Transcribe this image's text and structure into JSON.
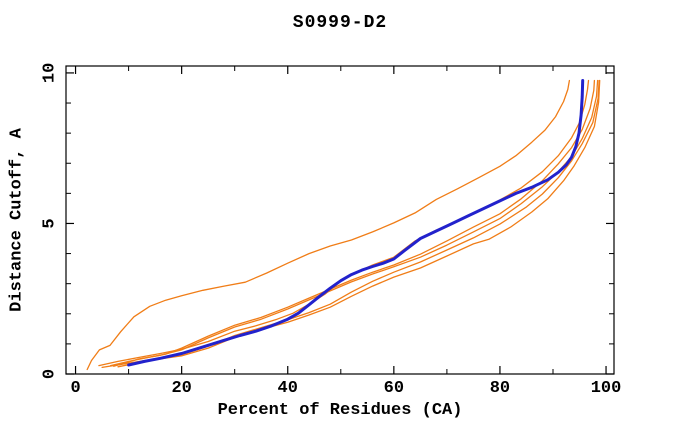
{
  "chart_data": {
    "type": "line",
    "title": "S0999-D2",
    "xlabel": "Percent of Residues (CA)",
    "ylabel": "Distance Cutoff, A",
    "xlim": [
      -1.8,
      101.5
    ],
    "ylim": [
      0,
      10.23
    ],
    "x_major_ticks": [
      0,
      20,
      40,
      60,
      80,
      100
    ],
    "x_minor_ticks": [
      10,
      30,
      50,
      70,
      90
    ],
    "y_major_ticks": [
      0,
      5,
      10
    ],
    "y_minor_ticks": [
      1,
      2,
      3,
      4,
      6,
      7,
      8,
      9
    ],
    "grid": false,
    "legend": "none",
    "colors": {
      "axis": "#000000",
      "background": "#ffffff",
      "orange": "#f07d17",
      "blue": "#2222cc"
    },
    "series": [
      {
        "name": "orange-top",
        "color": "#f07d17",
        "width": 1.3,
        "points": [
          [
            2.2,
            0.15
          ],
          [
            3,
            0.45
          ],
          [
            4.5,
            0.8
          ],
          [
            6.5,
            0.95
          ],
          [
            8.5,
            1.4
          ],
          [
            11,
            1.9
          ],
          [
            14,
            2.25
          ],
          [
            17,
            2.45
          ],
          [
            20,
            2.6
          ],
          [
            24,
            2.78
          ],
          [
            28,
            2.92
          ],
          [
            32,
            3.05
          ],
          [
            36,
            3.35
          ],
          [
            40,
            3.68
          ],
          [
            44,
            4.0
          ],
          [
            48,
            4.25
          ],
          [
            52,
            4.45
          ],
          [
            56,
            4.72
          ],
          [
            60,
            5.02
          ],
          [
            64,
            5.35
          ],
          [
            68,
            5.8
          ],
          [
            72,
            6.15
          ],
          [
            76,
            6.52
          ],
          [
            80,
            6.9
          ],
          [
            83,
            7.25
          ],
          [
            86,
            7.7
          ],
          [
            88.5,
            8.1
          ],
          [
            90.5,
            8.55
          ],
          [
            92,
            9.05
          ],
          [
            92.8,
            9.45
          ],
          [
            93.1,
            9.75
          ]
        ]
      },
      {
        "name": "orange-hug",
        "color": "#f07d17",
        "width": 1.3,
        "points": [
          [
            4.4,
            0.28
          ],
          [
            8,
            0.42
          ],
          [
            12,
            0.55
          ],
          [
            16,
            0.68
          ],
          [
            20,
            0.82
          ],
          [
            25,
            1.08
          ],
          [
            30,
            1.42
          ],
          [
            34,
            1.6
          ],
          [
            38,
            1.82
          ],
          [
            41,
            2.02
          ],
          [
            44,
            2.32
          ],
          [
            47,
            2.65
          ],
          [
            50,
            3.08
          ],
          [
            53,
            3.38
          ],
          [
            56,
            3.62
          ],
          [
            60,
            3.88
          ],
          [
            64,
            4.42
          ],
          [
            68,
            4.78
          ],
          [
            72,
            5.08
          ],
          [
            76,
            5.42
          ],
          [
            80,
            5.78
          ],
          [
            84,
            6.18
          ],
          [
            88,
            6.72
          ],
          [
            91,
            7.25
          ],
          [
            93.5,
            7.85
          ],
          [
            95,
            8.35
          ],
          [
            96,
            8.95
          ],
          [
            96.5,
            9.45
          ],
          [
            96.7,
            9.75
          ]
        ]
      },
      {
        "name": "orange-pair-1",
        "color": "#f07d17",
        "width": 1.3,
        "points": [
          [
            6.6,
            0.28
          ],
          [
            10,
            0.42
          ],
          [
            14,
            0.56
          ],
          [
            17,
            0.66
          ],
          [
            20,
            0.86
          ],
          [
            25,
            1.26
          ],
          [
            30,
            1.62
          ],
          [
            35,
            1.88
          ],
          [
            40,
            2.22
          ],
          [
            44,
            2.52
          ],
          [
            48,
            2.82
          ],
          [
            52,
            3.12
          ],
          [
            56,
            3.38
          ],
          [
            60,
            3.62
          ],
          [
            65,
            3.98
          ],
          [
            70,
            4.42
          ],
          [
            75,
            4.88
          ],
          [
            80,
            5.32
          ],
          [
            84,
            5.82
          ],
          [
            88,
            6.42
          ],
          [
            91,
            6.98
          ],
          [
            93.5,
            7.52
          ],
          [
            95.5,
            8.12
          ],
          [
            97,
            8.82
          ],
          [
            97.7,
            9.42
          ],
          [
            97.8,
            9.75
          ]
        ]
      },
      {
        "name": "orange-pair-2",
        "color": "#f07d17",
        "width": 1.3,
        "points": [
          [
            7.2,
            0.26
          ],
          [
            12,
            0.5
          ],
          [
            16,
            0.62
          ],
          [
            20,
            0.8
          ],
          [
            25,
            1.2
          ],
          [
            30,
            1.56
          ],
          [
            35,
            1.82
          ],
          [
            40,
            2.16
          ],
          [
            44,
            2.46
          ],
          [
            48,
            2.76
          ],
          [
            52,
            3.06
          ],
          [
            56,
            3.32
          ],
          [
            60,
            3.56
          ],
          [
            65,
            3.88
          ],
          [
            70,
            4.28
          ],
          [
            75,
            4.72
          ],
          [
            80,
            5.16
          ],
          [
            84,
            5.66
          ],
          [
            88,
            6.22
          ],
          [
            91,
            6.72
          ],
          [
            93.5,
            7.22
          ],
          [
            95.5,
            7.82
          ],
          [
            97.3,
            8.52
          ],
          [
            98.2,
            9.22
          ],
          [
            98.4,
            9.75
          ]
        ]
      },
      {
        "name": "orange-low-1",
        "color": "#f07d17",
        "width": 1.3,
        "points": [
          [
            5,
            0.22
          ],
          [
            10,
            0.36
          ],
          [
            15,
            0.5
          ],
          [
            20,
            0.64
          ],
          [
            25,
            0.92
          ],
          [
            30,
            1.28
          ],
          [
            35,
            1.54
          ],
          [
            40,
            1.8
          ],
          [
            44,
            2.04
          ],
          [
            48,
            2.32
          ],
          [
            52,
            2.72
          ],
          [
            56,
            3.08
          ],
          [
            60,
            3.38
          ],
          [
            65,
            3.72
          ],
          [
            70,
            4.12
          ],
          [
            75,
            4.52
          ],
          [
            80,
            4.98
          ],
          [
            85,
            5.55
          ],
          [
            88,
            5.98
          ],
          [
            91,
            6.52
          ],
          [
            93.5,
            7.08
          ],
          [
            95.5,
            7.65
          ],
          [
            97.5,
            8.35
          ],
          [
            98.5,
            9.15
          ],
          [
            98.7,
            9.75
          ]
        ]
      },
      {
        "name": "orange-low-2",
        "color": "#f07d17",
        "width": 1.3,
        "points": [
          [
            8,
            0.24
          ],
          [
            12,
            0.38
          ],
          [
            16,
            0.5
          ],
          [
            20,
            0.6
          ],
          [
            25,
            0.86
          ],
          [
            30,
            1.22
          ],
          [
            35,
            1.48
          ],
          [
            40,
            1.72
          ],
          [
            44,
            1.96
          ],
          [
            48,
            2.22
          ],
          [
            52,
            2.58
          ],
          [
            56,
            2.92
          ],
          [
            60,
            3.22
          ],
          [
            65,
            3.52
          ],
          [
            70,
            3.92
          ],
          [
            75,
            4.32
          ],
          [
            78,
            4.48
          ],
          [
            82,
            4.88
          ],
          [
            86,
            5.38
          ],
          [
            89,
            5.82
          ],
          [
            92,
            6.42
          ],
          [
            94,
            6.92
          ],
          [
            96,
            7.52
          ],
          [
            97.8,
            8.22
          ],
          [
            98.6,
            9.02
          ],
          [
            98.8,
            9.75
          ]
        ]
      },
      {
        "name": "blue-main",
        "color": "#2222cc",
        "width": 3,
        "points": [
          [
            10,
            0.3
          ],
          [
            13,
            0.42
          ],
          [
            16,
            0.52
          ],
          [
            20,
            0.68
          ],
          [
            24,
            0.9
          ],
          [
            28,
            1.12
          ],
          [
            31,
            1.28
          ],
          [
            34,
            1.42
          ],
          [
            37,
            1.6
          ],
          [
            40,
            1.82
          ],
          [
            42,
            2.02
          ],
          [
            44,
            2.3
          ],
          [
            46,
            2.58
          ],
          [
            48,
            2.85
          ],
          [
            50,
            3.1
          ],
          [
            52,
            3.3
          ],
          [
            54,
            3.45
          ],
          [
            56,
            3.57
          ],
          [
            58,
            3.68
          ],
          [
            60,
            3.82
          ],
          [
            62,
            4.1
          ],
          [
            65,
            4.5
          ],
          [
            68,
            4.75
          ],
          [
            71,
            5.0
          ],
          [
            74,
            5.25
          ],
          [
            77,
            5.5
          ],
          [
            80,
            5.75
          ],
          [
            83,
            6.0
          ],
          [
            86,
            6.2
          ],
          [
            89,
            6.45
          ],
          [
            91,
            6.7
          ],
          [
            92.5,
            6.95
          ],
          [
            93.5,
            7.2
          ],
          [
            94.3,
            7.55
          ],
          [
            94.9,
            8.0
          ],
          [
            95.3,
            8.6
          ],
          [
            95.5,
            9.2
          ],
          [
            95.6,
            9.75
          ]
        ]
      }
    ]
  }
}
